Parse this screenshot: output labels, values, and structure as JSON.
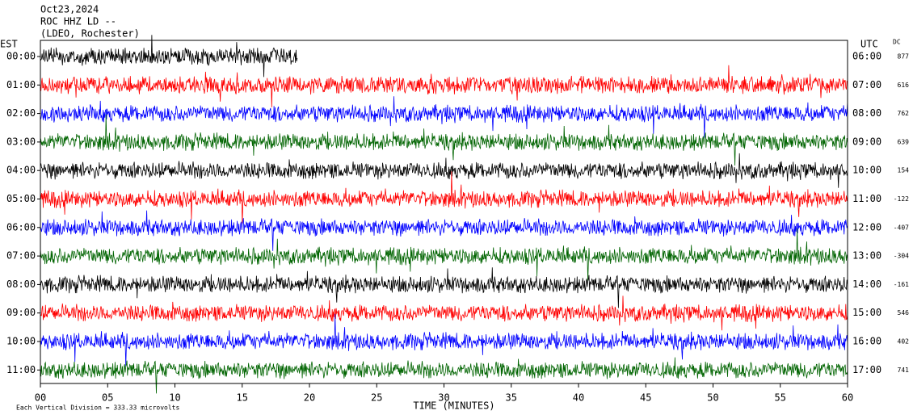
{
  "chart_data": {
    "type": "helicorder",
    "title": [
      "Oct23,2024",
      "ROC HHZ LD --",
      "(LDEO, Rochester)"
    ],
    "left_axis_label": "EST",
    "right_axis_label": "UTC",
    "dc_label": "DC",
    "xlabel": "TIME (MINUTES)",
    "xlim": [
      0,
      60
    ],
    "xticks": [
      {
        "value": 0,
        "label": "00"
      },
      {
        "value": 5,
        "label": "05"
      },
      10,
      15,
      20,
      25,
      30,
      35,
      40,
      45,
      50,
      55,
      60
    ],
    "rows": {
      "est": [
        "00:00",
        "01:00",
        "02:00",
        "03:00",
        "04:00",
        "05:00",
        "06:00",
        "07:00",
        "08:00",
        "09:00",
        "10:00",
        "11:00"
      ],
      "utc": [
        "06:00",
        "07:00",
        "08:00",
        "09:00",
        "10:00",
        "11:00",
        "12:00",
        "13:00",
        "14:00",
        "15:00",
        "16:00",
        "17:00"
      ],
      "dc": [
        877,
        616,
        762,
        639,
        154,
        -122,
        -407,
        -304,
        -161,
        546,
        402,
        741
      ]
    },
    "colors": [
      "#000000",
      "#ff0000",
      "#0000ff",
      "#006400"
    ],
    "note": "Each Vertical Division = 333.33 microvolts"
  }
}
